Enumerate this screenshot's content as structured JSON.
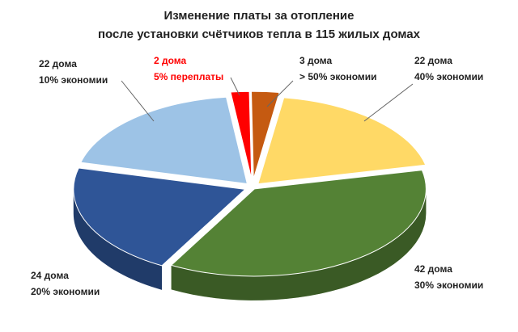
{
  "chart_data": {
    "type": "pie3d",
    "title": [
      "Изменение платы за отопление",
      "после установки счётчиков тепла в 115 жилых домах"
    ],
    "categories": [
      "5% переплаты",
      "> 50% экономии",
      "40% экономии",
      "30% экономии",
      "20% экономии",
      "10% экономии"
    ],
    "values": [
      2,
      3,
      22,
      42,
      24,
      22
    ],
    "value_labels": [
      "2 дома",
      "3 дома",
      "22 дома",
      "42 дома",
      "24 дома",
      "22 дома"
    ],
    "colors": [
      "#ff0000",
      "#c55a11",
      "#ffd966",
      "#548235",
      "#2f5597",
      "#9dc3e6"
    ],
    "label_colors": [
      "#ff0000",
      "#222222",
      "#222222",
      "#222222",
      "#222222",
      "#222222"
    ]
  }
}
